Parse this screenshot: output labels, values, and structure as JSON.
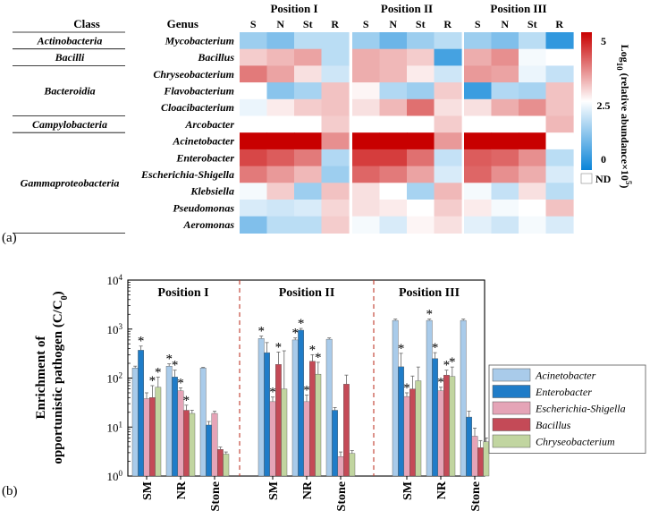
{
  "panel_a_label": "(a)",
  "panel_b_label": "(b)",
  "chart_data": [
    {
      "type": "heatmap",
      "title": "",
      "column_groups": [
        "Position I",
        "Position II",
        "Position III"
      ],
      "columns_per_group": [
        "S",
        "N",
        "St",
        "R"
      ],
      "row_header_class": "Class",
      "row_header_genus": "Genus",
      "classes": [
        {
          "name": "Actinobacteria",
          "rows": [
            0
          ]
        },
        {
          "name": "Bacilli",
          "rows": [
            1
          ]
        },
        {
          "name": "Bacteroidia",
          "rows": [
            2,
            3,
            4
          ]
        },
        {
          "name": "Campylobacteria",
          "rows": [
            5
          ]
        },
        {
          "name": "Gammaproteobacteria",
          "rows": [
            6,
            7,
            8,
            9,
            10,
            11
          ]
        }
      ],
      "genera": [
        "Mycobacterium",
        "Bacillus",
        "Chryseobacterium",
        "Flavobacterium",
        "Cloacibacterium",
        "Arcobacter",
        "Acinetobacter",
        "Enterobacter",
        "Escherichia-Shigella",
        "Klebsiella",
        "Pseudomonas",
        "Aeromonas"
      ],
      "values_note": "log10 (relative abundance x 10^5); null = ND",
      "values": [
        [
          1.5,
          1.2,
          1.8,
          1.8,
          1.5,
          1.0,
          1.5,
          1.8,
          1.5,
          1.2,
          1.8,
          0.4
        ],
        [
          3.0,
          3.2,
          3.4,
          1.8,
          3.3,
          3.2,
          3.0,
          0.6,
          3.3,
          3.6,
          2.4,
          null
        ],
        [
          3.8,
          3.4,
          2.8,
          2.0,
          3.3,
          3.2,
          2.7,
          2.0,
          3.5,
          3.4,
          2.3,
          1.9
        ],
        [
          null,
          1.3,
          1.6,
          3.1,
          2.6,
          1.7,
          1.5,
          3.0,
          0.5,
          1.7,
          1.6,
          3.1
        ],
        [
          2.3,
          2.7,
          3.0,
          3.1,
          2.8,
          3.2,
          3.9,
          2.8,
          2.8,
          3.3,
          3.6,
          3.1
        ],
        [
          null,
          null,
          null,
          3.0,
          null,
          null,
          null,
          3.0,
          null,
          null,
          null,
          3.2
        ],
        [
          5.0,
          5.0,
          5.0,
          3.6,
          5.0,
          5.0,
          5.0,
          3.5,
          5.0,
          5.0,
          5.0,
          2.5
        ],
        [
          4.3,
          4.1,
          3.8,
          1.7,
          4.4,
          4.4,
          3.9,
          1.9,
          4.1,
          4.0,
          3.6,
          1.8
        ],
        [
          3.8,
          3.5,
          3.2,
          1.5,
          4.0,
          3.8,
          3.4,
          2.1,
          4.0,
          3.6,
          3.3,
          2.1
        ],
        [
          2.4,
          3.0,
          1.5,
          3.1,
          2.8,
          2.5,
          1.6,
          3.2,
          2.4,
          1.9,
          2.8,
          1.8
        ],
        [
          2.1,
          2.0,
          2.1,
          2.9,
          2.8,
          2.7,
          2.5,
          3.0,
          2.7,
          2.4,
          2.5,
          3.1
        ],
        [
          1.2,
          1.8,
          1.8,
          3.0,
          2.4,
          2.1,
          2.6,
          2.8,
          2.2,
          2.0,
          2.4,
          2.1
        ]
      ],
      "colorbar": {
        "label_prefix": "Log",
        "label_sub": "10",
        "label_middle": " (relative abundance×10",
        "label_sup": "5",
        "label_suffix": ")",
        "ticks": [
          "5",
          "2.5",
          "0"
        ],
        "range": [
          0,
          5
        ],
        "nd_label": "ND",
        "colors": [
          "#0a84d8",
          "#ffffff",
          "#c80000"
        ]
      }
    },
    {
      "type": "bar",
      "yscale": "log",
      "ylim": [
        1,
        10000
      ],
      "ylabel_line1": "Enrichment of",
      "ylabel_line2": "opportunistic pathogen (C/C",
      "ylabel_sub": "0",
      "ylabel_tail": ")",
      "yticks": [
        {
          "base": "10",
          "exp": "0"
        },
        {
          "base": "10",
          "exp": "1"
        },
        {
          "base": "10",
          "exp": "2"
        },
        {
          "base": "10",
          "exp": "3"
        },
        {
          "base": "10",
          "exp": "4"
        }
      ],
      "panels": [
        "Position I",
        "Position II",
        "Position III"
      ],
      "categories": [
        "SM",
        "NR",
        "Stone"
      ],
      "legend_position": "right",
      "series": [
        {
          "name": "Acinetobacter",
          "color": "#a9cbea"
        },
        {
          "name": "Enterobacter",
          "color": "#1f7cc8"
        },
        {
          "name": "Escherichia-Shigella",
          "color": "#e5a4b7"
        },
        {
          "name": "Bacillus",
          "color": "#c44a57"
        },
        {
          "name": "Chryseobacterium",
          "color": "#c1d5a0"
        }
      ],
      "values": [
        [
          [
            160,
            370,
            38,
            40,
            65
          ],
          [
            175,
            105,
            55,
            22,
            19
          ],
          [
            160,
            11,
            19,
            3.5,
            2.8
          ]
        ],
        [
          [
            640,
            330,
            33,
            190,
            60
          ],
          [
            600,
            950,
            33,
            220,
            120
          ],
          [
            620,
            22,
            2.5,
            75,
            2.9
          ]
        ],
        [
          [
            1500,
            170,
            42,
            60,
            88
          ],
          [
            1500,
            250,
            55,
            115,
            108
          ],
          [
            1500,
            16,
            6.5,
            3.8,
            5.0
          ]
        ]
      ],
      "errors": [
        [
          [
            15,
            80,
            12,
            30,
            40
          ],
          [
            20,
            40,
            8,
            6,
            3
          ],
          [
            5,
            2,
            2,
            0.4,
            0.3
          ]
        ],
        [
          [
            80,
            200,
            8,
            150,
            300
          ],
          [
            60,
            80,
            12,
            80,
            90
          ],
          [
            40,
            3,
            0.6,
            40,
            0.4
          ]
        ],
        [
          [
            100,
            150,
            8,
            50,
            80
          ],
          [
            100,
            80,
            10,
            30,
            60
          ],
          [
            100,
            5,
            3,
            1.5,
            1.0
          ]
        ]
      ],
      "star_label": "*",
      "stars": [
        [
          [
            false,
            true,
            false,
            true,
            true
          ],
          [
            true,
            true,
            true,
            true,
            false
          ],
          [
            false,
            false,
            false,
            false,
            false
          ]
        ],
        [
          [
            true,
            false,
            true,
            true,
            false
          ],
          [
            true,
            true,
            true,
            true,
            true
          ],
          [
            false,
            false,
            false,
            false,
            false
          ]
        ],
        [
          [
            false,
            true,
            true,
            false,
            false
          ],
          [
            true,
            true,
            true,
            true,
            true
          ],
          [
            false,
            false,
            false,
            false,
            false
          ]
        ]
      ]
    }
  ]
}
